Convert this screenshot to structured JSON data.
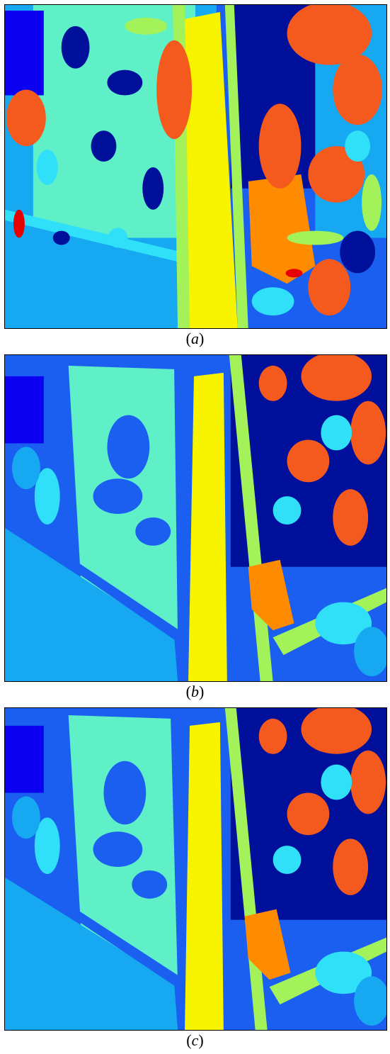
{
  "panels": [
    {
      "caption_open": "(",
      "caption_letter": "a",
      "caption_close": ")"
    },
    {
      "caption_open": "(",
      "caption_letter": "b",
      "caption_close": ")"
    },
    {
      "caption_open": "(",
      "caption_letter": "c",
      "caption_close": ")"
    }
  ],
  "palette": {
    "navy": "#00109a",
    "blue": "#1a5ff0",
    "sky": "#16a9f2",
    "cyan": "#30e0f8",
    "aqua": "#5ff0c8",
    "green": "#a4f25a",
    "yellow": "#f8f400",
    "orange": "#ff8c00",
    "redorange": "#f45a1e",
    "red": "#e60000",
    "royal": "#0c00f0"
  }
}
